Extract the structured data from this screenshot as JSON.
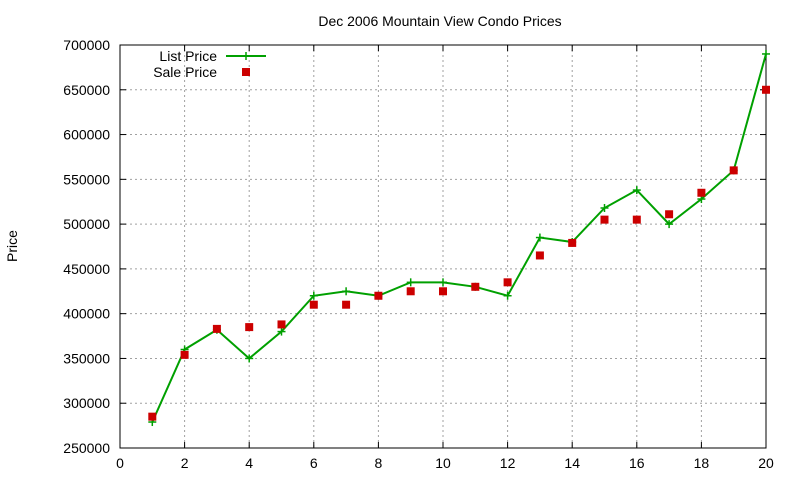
{
  "chart_data": {
    "type": "line",
    "title": "Dec 2006 Mountain View Condo Prices",
    "xlabel": "",
    "ylabel": "Price",
    "xlim": [
      0,
      20
    ],
    "ylim": [
      250000,
      700000
    ],
    "xticks": [
      0,
      2,
      4,
      6,
      8,
      10,
      12,
      14,
      16,
      18,
      20
    ],
    "yticks": [
      250000,
      300000,
      350000,
      400000,
      450000,
      500000,
      550000,
      600000,
      650000,
      700000
    ],
    "grid": true,
    "legend_position": "top-left",
    "series": [
      {
        "name": "List Price",
        "style": "line-plus",
        "color": "#00a000",
        "x": [
          1,
          2,
          3,
          4,
          5,
          6,
          7,
          8,
          9,
          10,
          11,
          12,
          13,
          14,
          15,
          16,
          17,
          18,
          19,
          20
        ],
        "y": [
          279000,
          360000,
          382000,
          350000,
          380000,
          420000,
          425000,
          420000,
          435000,
          435000,
          430000,
          420000,
          485000,
          480000,
          518000,
          538000,
          500000,
          528000,
          560000,
          690000
        ]
      },
      {
        "name": "Sale Price",
        "style": "square",
        "color": "#cc0000",
        "x": [
          1,
          2,
          3,
          4,
          5,
          6,
          7,
          8,
          9,
          10,
          11,
          12,
          13,
          14,
          15,
          16,
          17,
          18,
          19,
          20
        ],
        "y": [
          285000,
          354000,
          383000,
          385000,
          388000,
          410000,
          410000,
          420000,
          425000,
          425000,
          430000,
          435000,
          465000,
          479000,
          505000,
          505000,
          511000,
          535000,
          560000,
          650000
        ]
      }
    ]
  }
}
